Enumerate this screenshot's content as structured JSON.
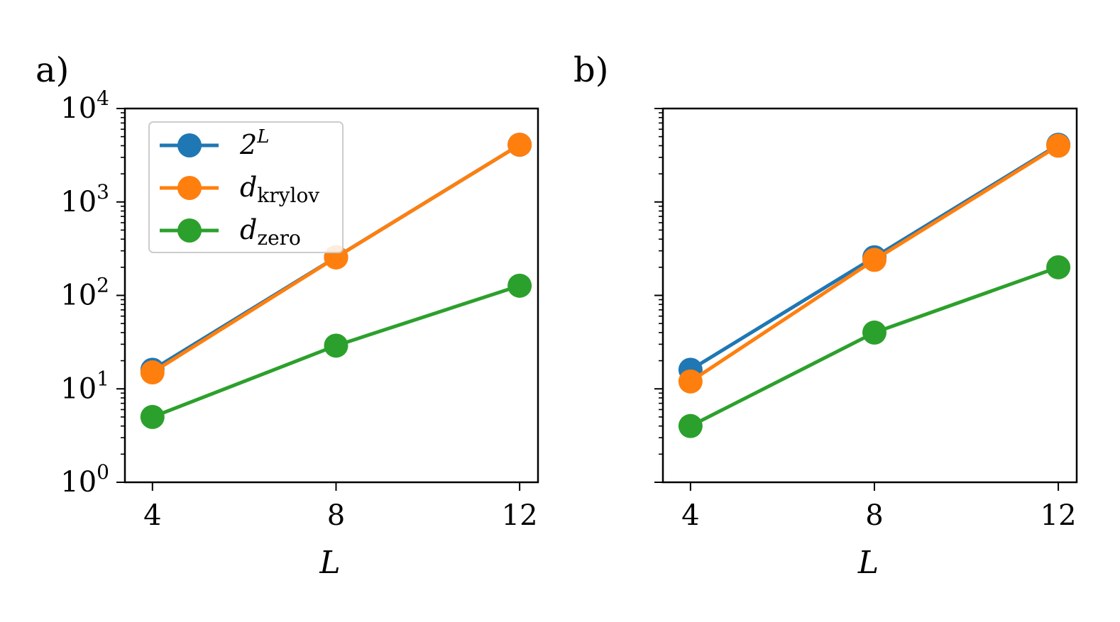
{
  "chart_data": [
    {
      "type": "line",
      "panel_label": "a)",
      "xlabel": "L",
      "ylabel": "",
      "x": [
        4,
        8,
        12
      ],
      "xticks": [
        4,
        8,
        12
      ],
      "xlim": [
        3.4,
        12.4
      ],
      "yscale": "log",
      "ylim": [
        1,
        10000
      ],
      "yticks": [
        {
          "value": 1,
          "base": "10",
          "exp": "0"
        },
        {
          "value": 10,
          "base": "10",
          "exp": "1"
        },
        {
          "value": 100,
          "base": "10",
          "exp": "2"
        },
        {
          "value": 1000,
          "base": "10",
          "exp": "3"
        },
        {
          "value": 10000,
          "base": "10",
          "exp": "4"
        }
      ],
      "show_ytick_labels": true,
      "grid": false,
      "legend": {
        "placement": "top-left",
        "entries": [
          {
            "base": "2",
            "sup": "L",
            "sub": "",
            "color": "#1f77b4"
          },
          {
            "base": "d",
            "sup": "",
            "sub": "krylov",
            "color": "#ff7f0e"
          },
          {
            "base": "d",
            "sup": "",
            "sub": "zero",
            "color": "#2ca02c"
          }
        ]
      },
      "series": [
        {
          "color": "#1f77b4",
          "values": [
            16,
            256,
            4096
          ]
        },
        {
          "color": "#ff7f0e",
          "values": [
            15,
            255,
            4095
          ]
        },
        {
          "color": "#2ca02c",
          "values": [
            5,
            29,
            127
          ]
        }
      ]
    },
    {
      "type": "line",
      "panel_label": "b)",
      "xlabel": "L",
      "ylabel": "",
      "x": [
        4,
        8,
        12
      ],
      "xticks": [
        4,
        8,
        12
      ],
      "xlim": [
        3.4,
        12.4
      ],
      "yscale": "log",
      "ylim": [
        1,
        10000
      ],
      "show_ytick_labels": false,
      "grid": false,
      "series": [
        {
          "color": "#1f77b4",
          "values": [
            16,
            256,
            4096
          ]
        },
        {
          "color": "#ff7f0e",
          "values": [
            12,
            240,
            4000
          ]
        },
        {
          "color": "#2ca02c",
          "values": [
            4,
            40,
            200
          ]
        }
      ]
    }
  ]
}
